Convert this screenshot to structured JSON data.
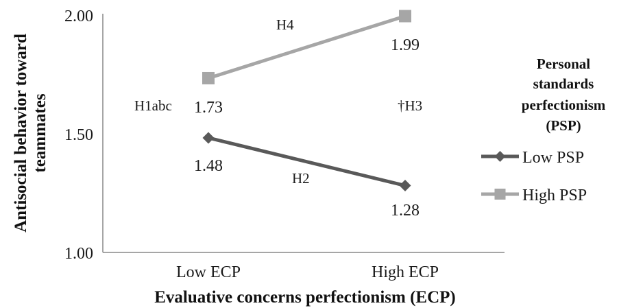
{
  "chart_data": {
    "type": "line",
    "categories": [
      "Low ECP",
      "High ECP"
    ],
    "xlabel": "Evaluative concerns perfectionism (ECP)",
    "ylabel": "Antisocial behavior toward teammates",
    "ylim": [
      1.0,
      2.0
    ],
    "yticks": [
      "1.00",
      "1.50",
      "2.00"
    ],
    "grid": false,
    "legend": {
      "title": "Personal standards perfectionism (PSP)",
      "title_lines": [
        "Personal",
        "standards",
        "perfectionism",
        "(PSP)"
      ],
      "placement": "right"
    },
    "series": [
      {
        "name": "Low PSP",
        "values": [
          1.48,
          1.28
        ],
        "labels": [
          "1.48",
          "1.28"
        ],
        "color": "#595959",
        "marker": "diamond"
      },
      {
        "name": "High PSP",
        "values": [
          1.73,
          1.99
        ],
        "labels": [
          "1.73",
          "1.99"
        ],
        "color": "#a6a6a6",
        "marker": "square"
      }
    ],
    "annotations": [
      "H1abc",
      "H2",
      "†H3",
      "H4"
    ]
  },
  "colors": {
    "axis": "#888888",
    "text": "#1a1a1a"
  }
}
